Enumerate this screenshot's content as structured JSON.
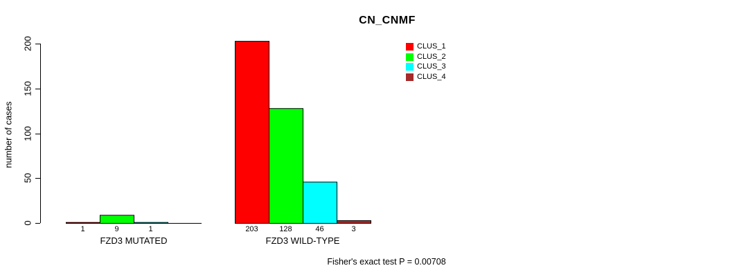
{
  "chart_data": {
    "type": "bar",
    "title": "CN_CNMF",
    "ylabel": "number of cases",
    "ylim": [
      0,
      200
    ],
    "yticks": [
      0,
      50,
      100,
      150,
      200
    ],
    "categories": [
      "FZD3 MUTATED",
      "FZD3 WILD-TYPE"
    ],
    "series": [
      {
        "name": "CLUS_1",
        "color": "#FF0000",
        "values": [
          1,
          203
        ]
      },
      {
        "name": "CLUS_2",
        "color": "#00FF00",
        "values": [
          9,
          128
        ]
      },
      {
        "name": "CLUS_3",
        "color": "#00FFFF",
        "values": [
          1,
          46
        ]
      },
      {
        "name": "CLUS_4",
        "color": "#A52A2A",
        "values": [
          0,
          3
        ]
      }
    ],
    "bar_value_labels": [
      [
        "1",
        "9",
        "1",
        ""
      ],
      [
        "203",
        "128",
        "46",
        "3"
      ]
    ],
    "legend_position": "top-right",
    "grid": false,
    "note": "Fisher's exact test P = 0.00708",
    "axis_color": "#000000",
    "background_color": "#FFFFFF"
  }
}
